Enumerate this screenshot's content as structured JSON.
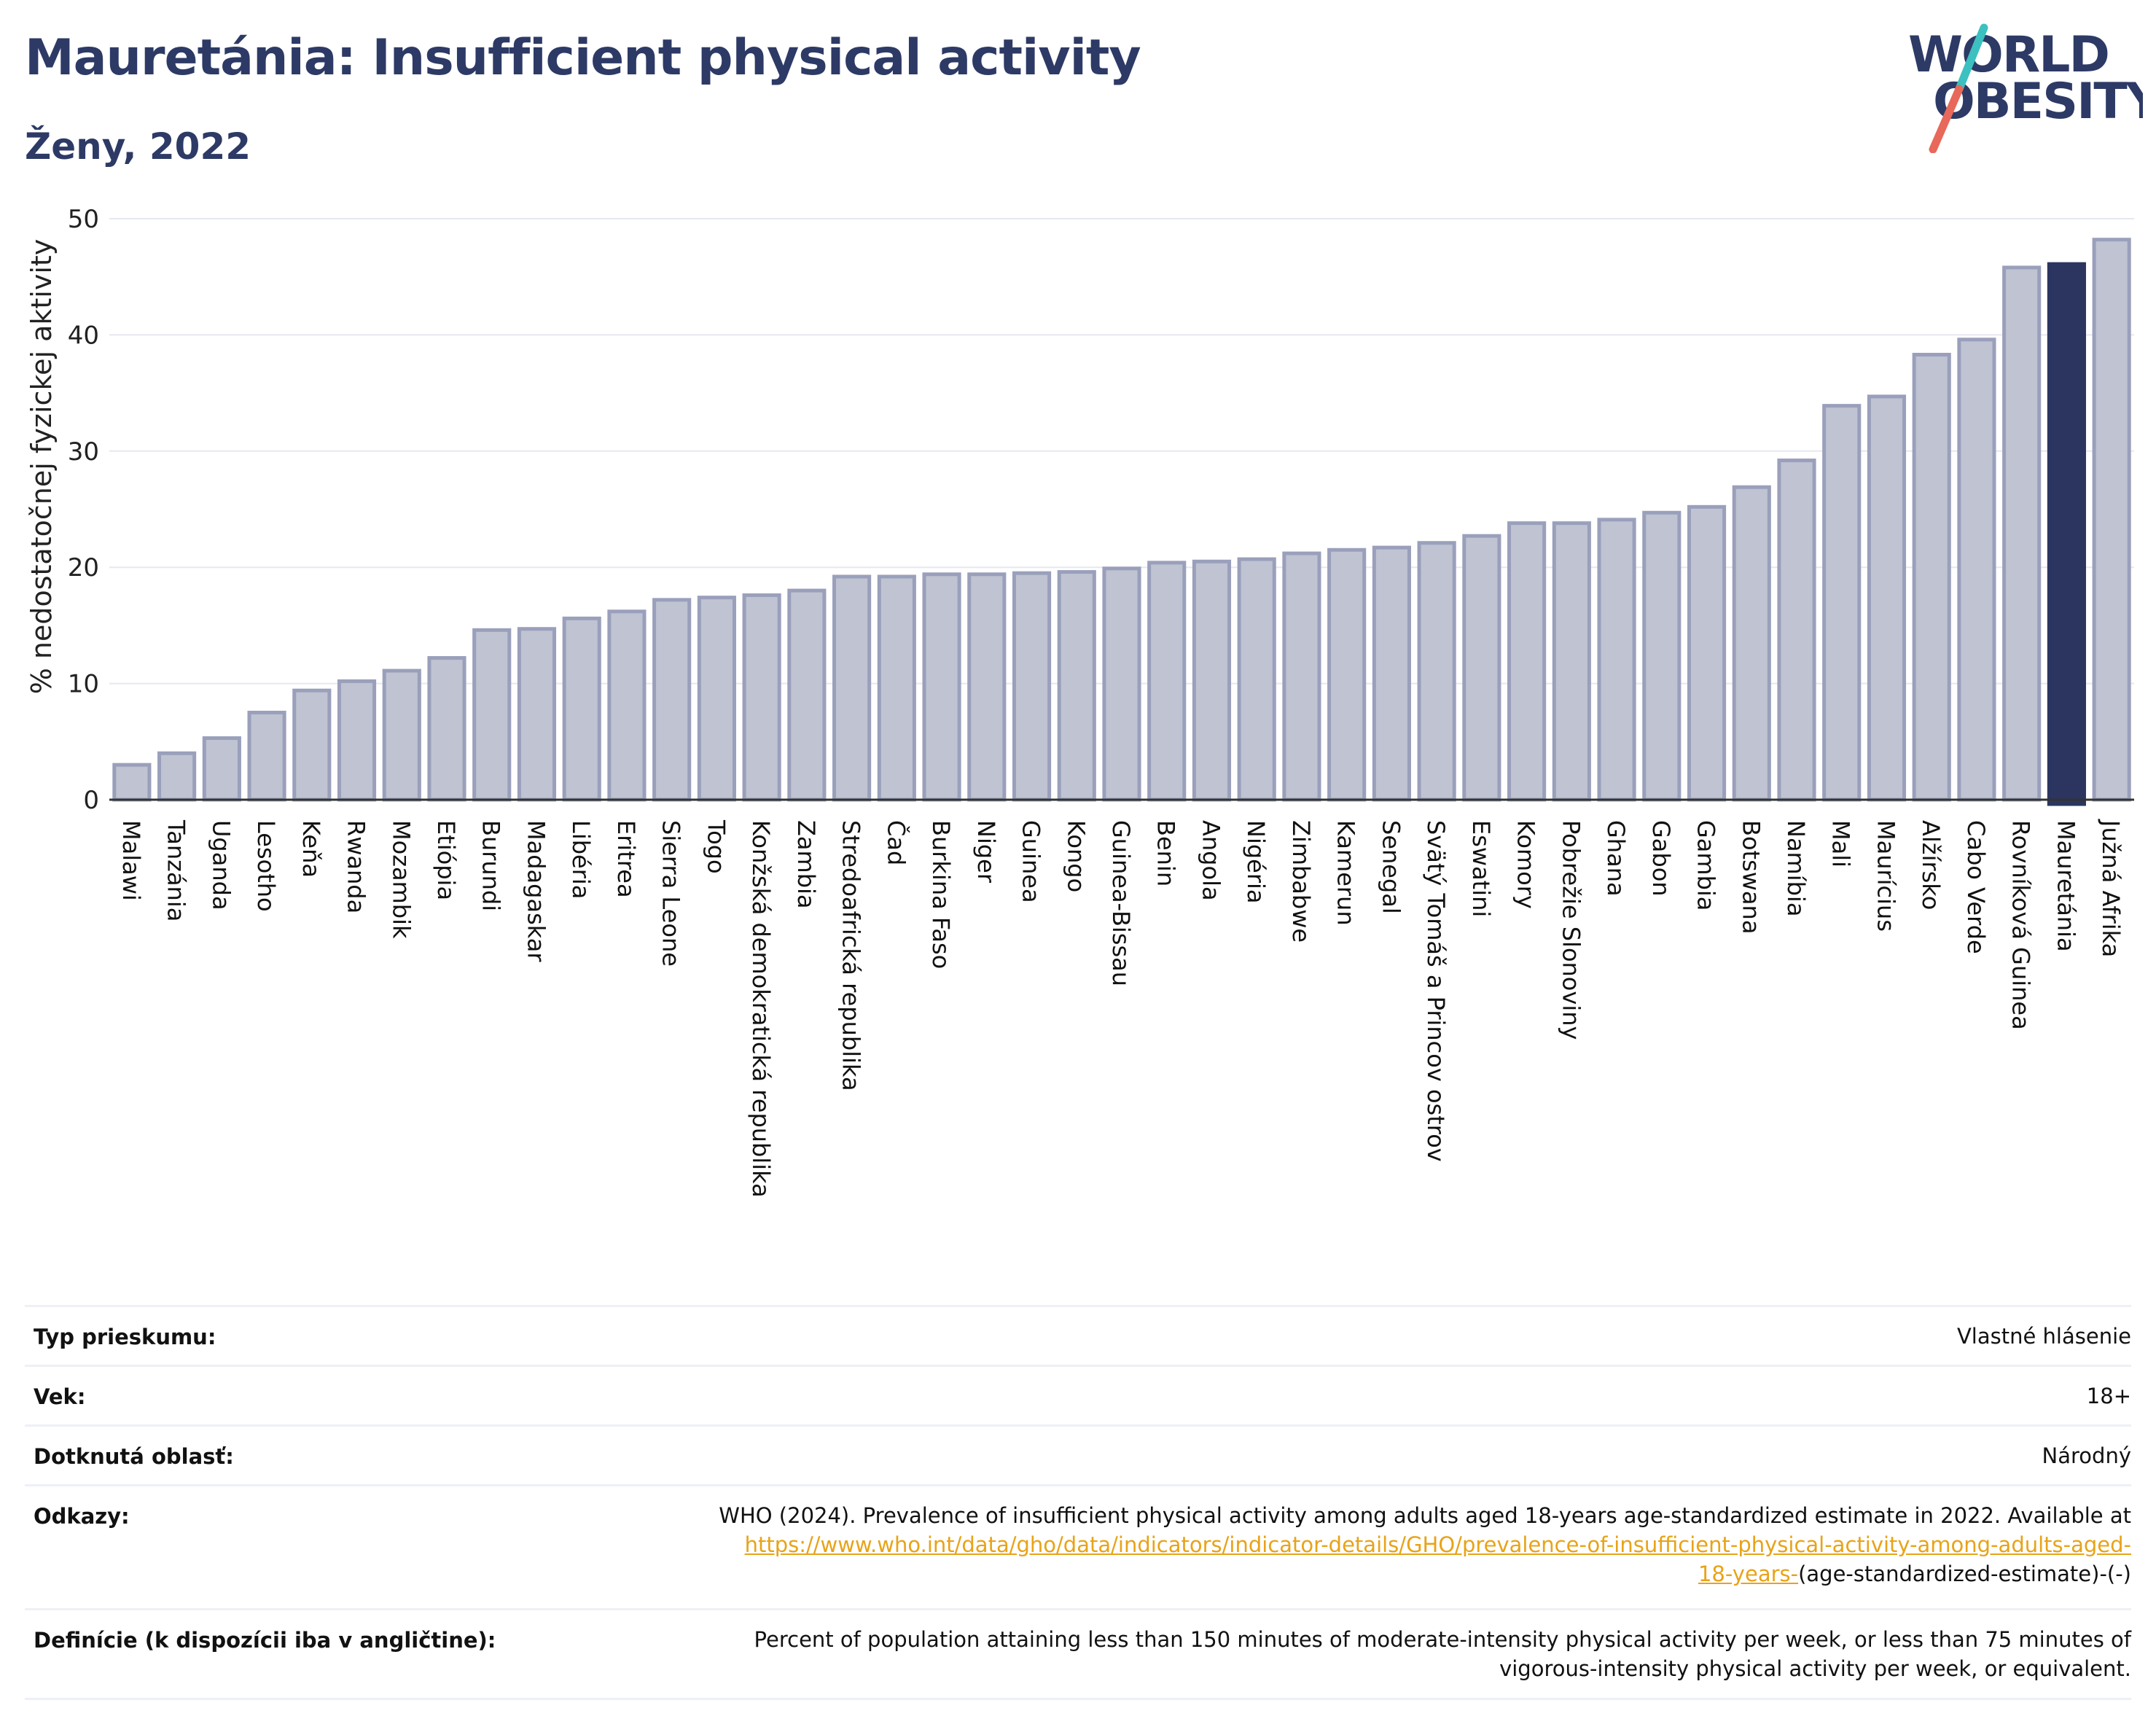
{
  "header": {
    "title": "Mauretánia: Insufficient physical activity",
    "subtitle": "Ženy, 2022",
    "logo_text_line1": "WORLD",
    "logo_text_line2": "OBESITY"
  },
  "colors": {
    "title": "#2d3a66",
    "bar_fill": "#bfc3d2",
    "bar_stroke": "#9aa0bb",
    "bar_highlight": "#2b3560",
    "grid": "#e6e8f0",
    "link": "#e8a317",
    "logo_slash_top": "#3cc0c0",
    "logo_slash_bottom": "#e8685a"
  },
  "chart_data": {
    "type": "bar",
    "title": "",
    "xlabel": "",
    "ylabel": "% nedostatočnej fyzickej aktivity",
    "ylim": [
      0,
      50
    ],
    "yticks": [
      0,
      10,
      20,
      30,
      40,
      50
    ],
    "grid": true,
    "legend": "none",
    "highlight": "Mauretánia",
    "categories": [
      "Malawi",
      "Tanzánia",
      "Uganda",
      "Lesotho",
      "Keňa",
      "Rwanda",
      "Mozambik",
      "Etiópia",
      "Burundi",
      "Madagaskar",
      "Libéria",
      "Eritrea",
      "Sierra Leone",
      "Togo",
      "Konžská demokratická republika",
      "Zambia",
      "Stredoafrická republika",
      "Čad",
      "Burkina Faso",
      "Niger",
      "Guinea",
      "Kongo",
      "Guinea-Bissau",
      "Benin",
      "Angola",
      "Nigéria",
      "Zimbabwe",
      "Kamerun",
      "Senegal",
      "Svätý Tomáš a Princov ostrov",
      "Eswatini",
      "Komory",
      "Pobrežie Slonoviny",
      "Ghana",
      "Gabon",
      "Gambia",
      "Botswana",
      "Namíbia",
      "Mali",
      "Maurícius",
      "Alžírsko",
      "Cabo Verde",
      "Rovníková Guinea",
      "Mauretánia",
      "Južná Afrika"
    ],
    "values": [
      3.0,
      4.0,
      5.3,
      7.5,
      9.4,
      10.2,
      11.1,
      12.2,
      14.6,
      14.7,
      15.6,
      16.2,
      17.2,
      17.4,
      17.6,
      18.0,
      19.2,
      19.2,
      19.4,
      19.4,
      19.5,
      19.6,
      19.9,
      20.4,
      20.5,
      20.7,
      21.2,
      21.5,
      21.7,
      22.1,
      22.7,
      23.8,
      23.8,
      24.1,
      24.7,
      25.2,
      26.9,
      29.2,
      33.9,
      34.7,
      38.3,
      39.6,
      45.8,
      46.1,
      48.2
    ]
  },
  "info": {
    "rows": [
      {
        "label": "Typ prieskumu:",
        "value": "Vlastné hlásenie"
      },
      {
        "label": "Vek:",
        "value": "18+"
      },
      {
        "label": "Dotknutá oblasť:",
        "value": "Národný"
      }
    ],
    "references": {
      "label": "Odkazy:",
      "text": "WHO (2024). Prevalence of insufficient physical activity among adults aged 18-years age-standardized estimate in 2022. Available at",
      "link_line1": "https://www.who.int/data/gho/data/indicators/indicator-details/GHO/prevalence-of-insufficient-physical-activity-among-adults-aged-",
      "link_line2": "18-years-",
      "suffix": "(age-standardized-estimate)-(-)"
    },
    "definitions": {
      "label": "Definície (k dispozícii iba v angličtine):",
      "line1": "Percent of population attaining less than 150 minutes of moderate-intensity physical activity per week, or less than 75 minutes of",
      "line2": "vigorous-intensity physical activity per week, or equivalent."
    }
  }
}
